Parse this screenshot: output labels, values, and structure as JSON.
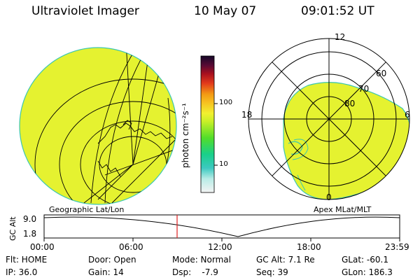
{
  "header": {
    "instrument": "Ultraviolet Imager",
    "date": "10 May 07",
    "time": "09:01:52 UT"
  },
  "colors": {
    "aurora_fill": "#e5f230",
    "contour": "#3cc7b0",
    "grid": "#000000",
    "cursor": "#e02020"
  },
  "left_panel": {
    "label": "Geographic Lat/Lon"
  },
  "right_panel": {
    "label": "Apex MLat/MLT",
    "mlt_labels": {
      "top": "12",
      "left": "18",
      "right": "6",
      "bottom": "0"
    },
    "lat_labels": [
      "60",
      "70",
      "80"
    ]
  },
  "colorbar": {
    "unit": "photon cm⁻²s⁻¹",
    "ticks": [
      "100",
      "10"
    ],
    "scale": "log"
  },
  "altitude_plot": {
    "axis_title": "GC Alt",
    "y_ticks": [
      "9.0",
      "1.8"
    ],
    "x_ticks": [
      "00:00",
      "06:00",
      "12:00",
      "18:00",
      "23:59"
    ],
    "cursor_time": "09:01:52"
  },
  "footer": {
    "row1": [
      "Flt: HOME",
      "Door: Open",
      "Mode: Normal",
      "GC Alt: 7.1 Re",
      "GLat: -60.1"
    ],
    "row2": [
      "IP: 36.0",
      "Gain: 14",
      "Dsp:    -7.9",
      "Seq: 39",
      "GLon: 186.3"
    ]
  }
}
